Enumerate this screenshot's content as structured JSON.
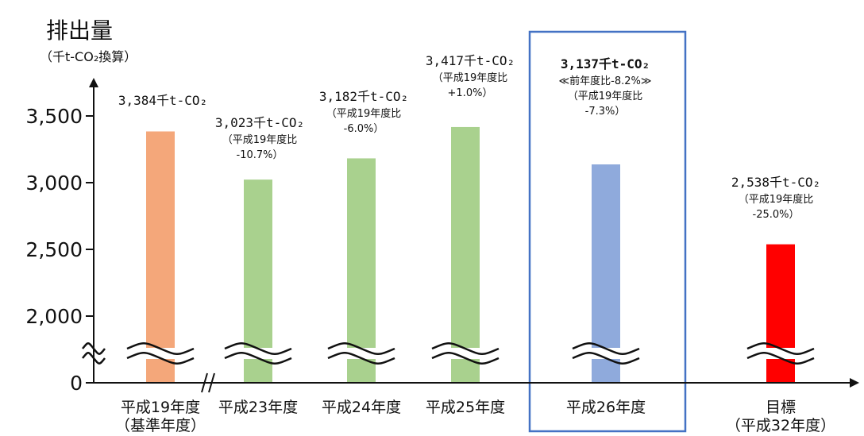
{
  "chart_data": {
    "type": "bar",
    "ylabel": "排出量",
    "yunit": "（千t-CO₂換算）",
    "yticks": [
      {
        "value": 0,
        "label": "0"
      },
      {
        "value": 2000,
        "label": "2,000"
      },
      {
        "value": 2500,
        "label": "2,500"
      },
      {
        "value": 3000,
        "label": "3,000"
      },
      {
        "value": 3500,
        "label": "3,500"
      }
    ],
    "axis_break": true,
    "categories": [
      {
        "label": "平成19年度",
        "sublabel": "（基準年度）",
        "value": 3384,
        "color": "#f4a77a",
        "highlight": false,
        "annotation": "3,384千t-CO₂",
        "notes": []
      },
      {
        "label": "平成23年度",
        "sublabel": "",
        "value": 3023,
        "color": "#a9d18e",
        "highlight": false,
        "annotation": "3,023千t-CO₂",
        "notes": [
          "（平成19年度比",
          "-10.7%）"
        ]
      },
      {
        "label": "平成24年度",
        "sublabel": "",
        "value": 3182,
        "color": "#a9d18e",
        "highlight": false,
        "annotation": "3,182千t-CO₂",
        "notes": [
          "（平成19年度比",
          "-6.0%）"
        ]
      },
      {
        "label": "平成25年度",
        "sublabel": "",
        "value": 3417,
        "color": "#a9d18e",
        "highlight": false,
        "annotation": "3,417千t-CO₂",
        "notes": [
          "（平成19年度比",
          "+1.0%）"
        ]
      },
      {
        "label": "平成26年度",
        "sublabel": "",
        "value": 3137,
        "color": "#8faadc",
        "highlight": true,
        "annotation": "3,137千t-CO₂",
        "notes": [
          "≪前年度比-8.2%≫",
          "（平成19年度比",
          "-7.3%）"
        ]
      },
      {
        "label": "目標",
        "sublabel": "（平成32年度）",
        "value": 2538,
        "color": "#ff0000",
        "highlight": false,
        "annotation": "2,538千t-CO₂",
        "notes": [
          "（平成19年度比",
          "-25.0%）"
        ]
      }
    ]
  },
  "colors": {
    "highlight_text": "#e60012",
    "highlight_box": "#4472c4",
    "axis": "#111111"
  }
}
